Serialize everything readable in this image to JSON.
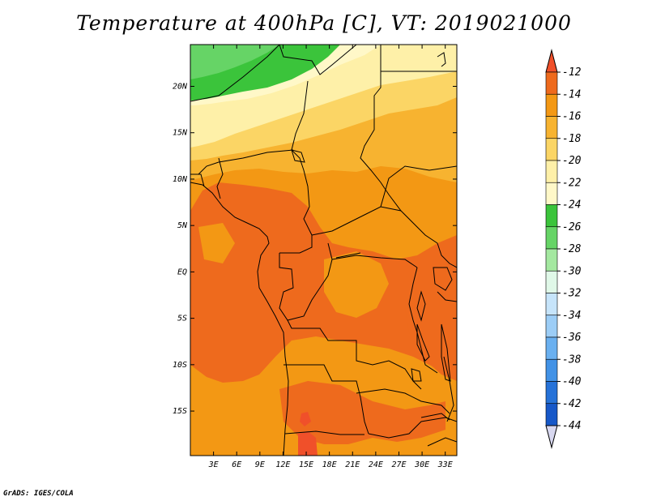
{
  "title": "Temperature at 400hPa [C], VT: 2019021000",
  "credit": "GrADS: IGES/COLA",
  "chart_data": {
    "type": "heatmap",
    "title": "Temperature at 400hPa [C], VT: 2019021000",
    "variable": "Temperature",
    "units": "C",
    "level": "400hPa",
    "valid_time": "2019021000",
    "lon_ticks": [
      "3E",
      "6E",
      "9E",
      "12E",
      "15E",
      "18E",
      "21E",
      "24E",
      "27E",
      "30E",
      "33E"
    ],
    "lat_ticks": [
      "20N",
      "15N",
      "10N",
      "5N",
      "EQ",
      "5S",
      "10S",
      "15S"
    ],
    "lon_values": [
      3,
      6,
      9,
      12,
      15,
      18,
      21,
      24,
      27,
      30,
      33
    ],
    "lat_values": [
      20,
      15,
      10,
      5,
      0,
      -5,
      -10,
      -15
    ],
    "xlim": [
      0,
      34.5
    ],
    "ylim": [
      -19.8,
      24.5
    ],
    "colorbar": {
      "labels": [
        "-12",
        "-14",
        "-16",
        "-18",
        "-20",
        "-22",
        "-24",
        "-26",
        "-28",
        "-30",
        "-32",
        "-34",
        "-36",
        "-38",
        "-40",
        "-42",
        "-44"
      ],
      "colors": [
        "#f0502a",
        "#ee6a1d",
        "#f39814",
        "#f7b330",
        "#fbd565",
        "#fef0a8",
        "#fff8c8",
        "#3bc43b",
        "#66d466",
        "#a4e8a0",
        "#e0f8e8",
        "#c6e4fa",
        "#9ccdf6",
        "#6ab0f0",
        "#4292e6",
        "#2672d8",
        "#1758c8",
        "#0d3ea8",
        "#0b1f78",
        "#d8d8f0"
      ]
    },
    "regions": [
      {
        "name": "north-band-green",
        "value": -24
      },
      {
        "name": "sahel-pale",
        "value": -21
      },
      {
        "name": "sahel-yellow",
        "value": -19
      },
      {
        "name": "central-orange",
        "value": -16
      },
      {
        "name": "congo-dark-orange",
        "value": -14
      },
      {
        "name": "angola-hotspot",
        "value": -12
      }
    ]
  }
}
